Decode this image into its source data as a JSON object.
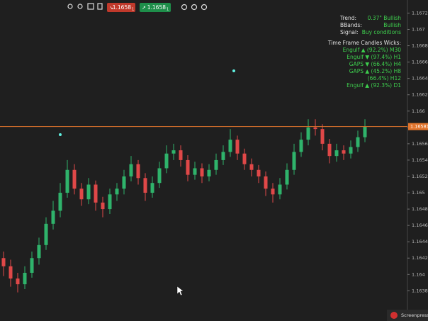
{
  "toolbar": {
    "sell": {
      "main": "1.1658",
      "pip": "1"
    },
    "buy": {
      "main": "1.1658",
      "pip": "1"
    }
  },
  "chart_data": {
    "type": "candlestick",
    "open": [
      1.1642,
      1.1641,
      1.16395,
      1.16388,
      1.16402,
      1.1642,
      1.16436,
      1.16462,
      1.16478,
      1.165,
      1.16528,
      1.16505,
      1.16492,
      1.1651,
      1.16488,
      1.1648,
      1.16498,
      1.16505,
      1.1652,
      1.16535,
      1.16518,
      1.165,
      1.16512,
      1.1653,
      1.16548,
      1.16552,
      1.1654,
      1.16522,
      1.1653,
      1.1652,
      1.16528,
      1.1654,
      1.1655,
      1.16565,
      1.16548,
      1.16535,
      1.16528,
      1.1652,
      1.16505,
      1.16498,
      1.1651,
      1.16528,
      1.1655,
      1.16565,
      1.1658,
      1.16578,
      1.1656,
      1.16545,
      1.16552,
      1.16548,
      1.16556,
      1.16568
    ],
    "high": [
      1.16428,
      1.16418,
      1.16402,
      1.1641,
      1.16428,
      1.16445,
      1.1647,
      1.1649,
      1.16512,
      1.1654,
      1.16535,
      1.16512,
      1.16518,
      1.16515,
      1.16495,
      1.16505,
      1.16512,
      1.16528,
      1.16545,
      1.1654,
      1.16524,
      1.1652,
      1.16538,
      1.16558,
      1.1656,
      1.16558,
      1.16546,
      1.16538,
      1.16536,
      1.16535,
      1.16548,
      1.16558,
      1.16578,
      1.1657,
      1.16554,
      1.16542,
      1.16534,
      1.16526,
      1.16512,
      1.16518,
      1.16536,
      1.1656,
      1.16574,
      1.1659,
      1.1659,
      1.16584,
      1.16566,
      1.1656,
      1.16558,
      1.16564,
      1.16576,
      1.1659
    ],
    "low": [
      1.16398,
      1.16385,
      1.16378,
      1.16382,
      1.16396,
      1.16412,
      1.1643,
      1.16455,
      1.1647,
      1.16494,
      1.16498,
      1.16484,
      1.16486,
      1.16478,
      1.1647,
      1.16474,
      1.1649,
      1.16498,
      1.16514,
      1.1651,
      1.1649,
      1.16494,
      1.16506,
      1.16524,
      1.1654,
      1.16532,
      1.16514,
      1.16516,
      1.16512,
      1.16514,
      1.16522,
      1.16534,
      1.16544,
      1.1654,
      1.16528,
      1.1652,
      1.16512,
      1.16496,
      1.16488,
      1.16492,
      1.16504,
      1.16522,
      1.16544,
      1.16558,
      1.1657,
      1.16552,
      1.16536,
      1.16538,
      1.1654,
      1.16542,
      1.1655,
      1.16562
    ],
    "close": [
      1.1641,
      1.16395,
      1.16388,
      1.16402,
      1.1642,
      1.16436,
      1.16462,
      1.16478,
      1.165,
      1.16528,
      1.16505,
      1.16492,
      1.1651,
      1.16488,
      1.1648,
      1.16498,
      1.16505,
      1.1652,
      1.16535,
      1.16518,
      1.165,
      1.16512,
      1.1653,
      1.16548,
      1.16552,
      1.1654,
      1.16522,
      1.1653,
      1.1652,
      1.16528,
      1.1654,
      1.1655,
      1.16565,
      1.16548,
      1.16535,
      1.16528,
      1.1652,
      1.16505,
      1.16498,
      1.1651,
      1.16528,
      1.1655,
      1.16565,
      1.1658,
      1.16578,
      1.1656,
      1.16545,
      1.16552,
      1.16548,
      1.16556,
      1.16568,
      1.16581
    ],
    "up_color": "#2fb36b",
    "down_color": "#e04848",
    "ylim": [
      1.16343,
      1.16736
    ],
    "yticks": [
      1.1672,
      1.167,
      1.1668,
      1.1666,
      1.1664,
      1.1662,
      1.166,
      1.1658,
      1.1656,
      1.1654,
      1.1652,
      1.165,
      1.1648,
      1.1646,
      1.1644,
      1.1642,
      1.164,
      1.1638
    ],
    "current_price": {
      "value": 1.16581,
      "label": "1.16581",
      "color": "#e0742c"
    }
  },
  "info_panel": {
    "rows": [
      [
        "Trend:",
        "0.37\" Bullish"
      ],
      [
        "BBands:",
        "Bullish"
      ],
      [
        "Signal:",
        "Buy conditions"
      ]
    ],
    "wicks_title": "Time Frame Candles Wicks:",
    "wicks": [
      "Engulf ▲ (92.2%) M30",
      "Engulf ▼ (97.4%) H1",
      "GAPS ▼ (66.4%) H4",
      "GAPS ▲ (45.2%) H8",
      "(66.4%) H12",
      "Engulf ▲ (92.3%) D1"
    ]
  },
  "watermark": "Screenpresso.com"
}
